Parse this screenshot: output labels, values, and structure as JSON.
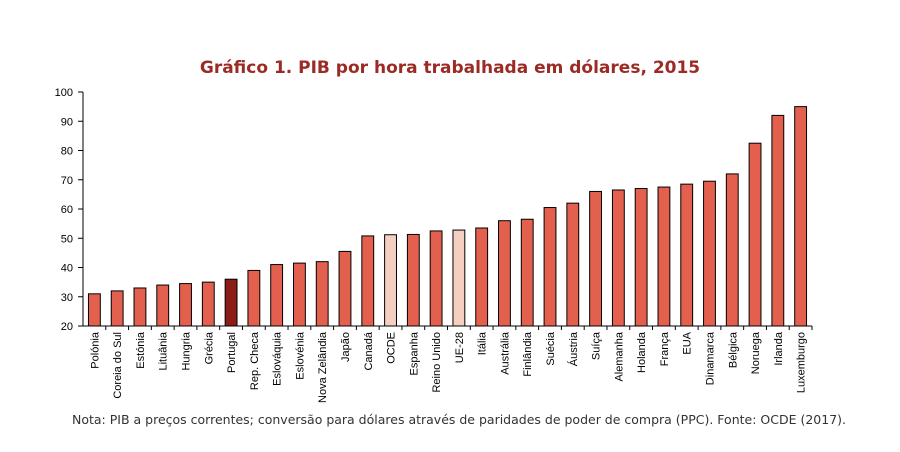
{
  "chart_data": {
    "type": "bar",
    "title": "Gráfico 1. PIB por hora trabalhada em dólares, 2015",
    "xlabel": "",
    "ylabel": "",
    "ylim": [
      20,
      100
    ],
    "yticks": [
      20,
      30,
      40,
      50,
      60,
      70,
      80,
      90,
      100
    ],
    "grid": false,
    "categories": [
      "Polónia",
      "Coreia do Sul",
      "Estónia",
      "Lituânia",
      "Hungria",
      "Grécia",
      "Portugal",
      "Rep. Checa",
      "Eslováquia",
      "Eslovénia",
      "Nova Zelândia",
      "Japão",
      "Canadá",
      "OCDE",
      "Espanha",
      "Reino Unido",
      "UE-28",
      "Itália",
      "Austrália",
      "Finlândia",
      "Suécia",
      "Áustria",
      "Suíça",
      "Alemanha",
      "Holanda",
      "França",
      "EUA",
      "Dinamarca",
      "Bélgica",
      "Noruega",
      "Irlanda",
      "Luxemburgo"
    ],
    "values": [
      31,
      32,
      33,
      34,
      34.5,
      35,
      36,
      39,
      41,
      41.5,
      42,
      45.5,
      50.8,
      51.2,
      51.3,
      52.5,
      52.8,
      53.5,
      56,
      56.5,
      60.5,
      62,
      66,
      66.5,
      67,
      67.5,
      68.5,
      69.5,
      72,
      82.5,
      92,
      95
    ],
    "highlight": {
      "Portugal": "#8b1c18",
      "OCDE": "#f6cfc3",
      "UE-28": "#f6cfc3"
    },
    "bar_color": "#e4604e",
    "bar_stroke": "#000000"
  },
  "note": "Nota: PIB a preços correntes; conversão para dólares através de paridades de poder de compra (PPC). Fonte: OCDE (2017)."
}
